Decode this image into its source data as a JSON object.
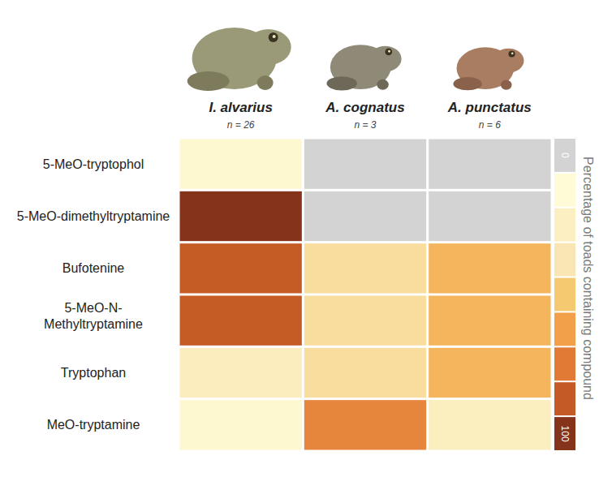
{
  "chart_data": {
    "type": "heatmap",
    "columns": [
      "I. alvarius",
      "A. cognatus",
      "A. punctatus"
    ],
    "column_notes": [
      "n = 26",
      "n = 3",
      "n = 6"
    ],
    "rows": [
      "5-MeO-tryptophol",
      "5-MeO-dimethyltryptamine",
      "Bufotenine",
      "5-MeO-N-Methyltryptamine",
      "Tryptophan",
      "MeO-tryptamine"
    ],
    "values": [
      [
        4,
        0,
        0
      ],
      [
        100,
        0,
        0
      ],
      [
        85,
        33,
        50
      ],
      [
        85,
        33,
        50
      ],
      [
        19,
        33,
        50
      ],
      [
        4,
        67,
        17
      ]
    ],
    "colorbar": {
      "label": "Percentage of toads containing compound",
      "range": [
        0,
        100
      ],
      "ticks": [
        0,
        100
      ],
      "colors": [
        "#d3d3d3",
        "#fffbd6",
        "#fcf0c2",
        "#f9e6b4",
        "#f5c96f",
        "#f2a14a",
        "#e07a35",
        "#c45a25",
        "#85331a"
      ]
    }
  }
}
